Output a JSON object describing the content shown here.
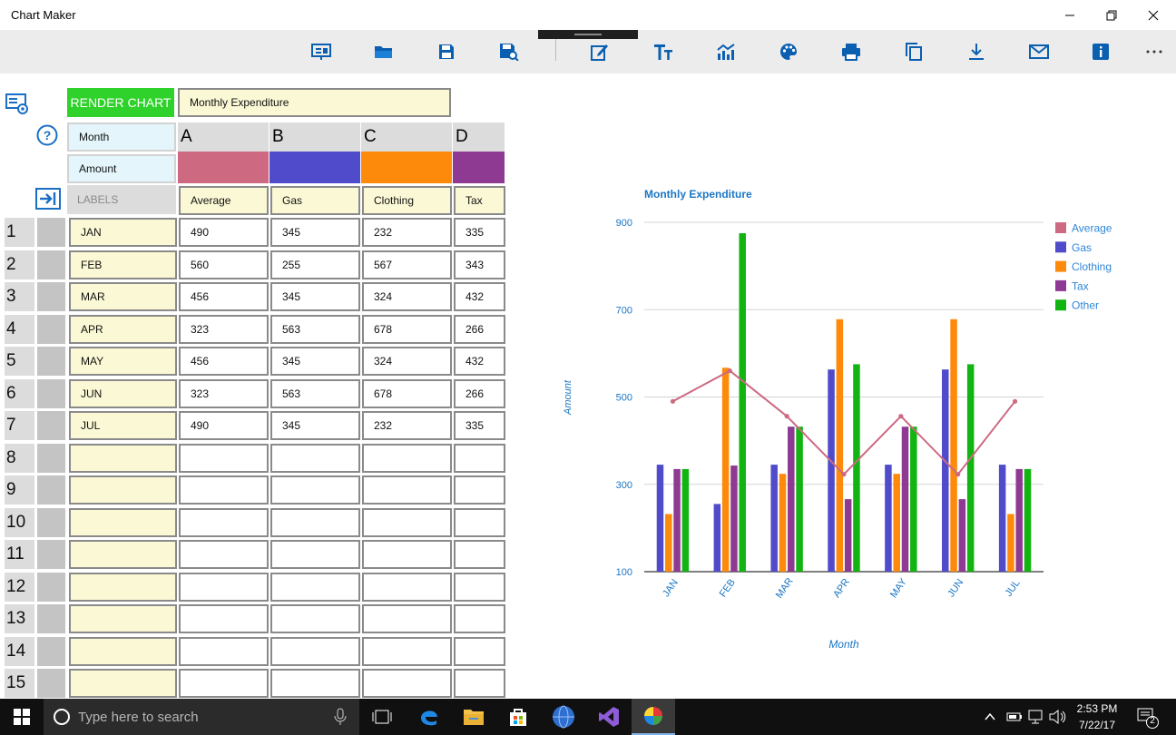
{
  "window": {
    "title": "Chart Maker"
  },
  "toolbar": {
    "icons": [
      "presentation-icon",
      "folder-open-icon",
      "save-icon",
      "save-as-icon",
      "edit-icon",
      "text-format-icon",
      "chart-type-icon",
      "palette-icon",
      "print-icon",
      "copy-icon",
      "download-icon",
      "mail-icon",
      "info-icon",
      "more-icon"
    ]
  },
  "sheet": {
    "render_button": "RENDER CHART",
    "chart_title_value": "Monthly Expenditure",
    "x_label": "Month",
    "y_label": "Amount",
    "labels_header": "LABELS",
    "columns": [
      {
        "letter": "A",
        "name": "Average",
        "color": "#cd6a82"
      },
      {
        "letter": "B",
        "name": "Gas",
        "color": "#4f4bcb"
      },
      {
        "letter": "C",
        "name": "Clothing",
        "color": "#fd8a0a"
      },
      {
        "letter": "D",
        "name": "Tax",
        "color": "#8e3a92"
      }
    ],
    "row_numbers": [
      "1",
      "2",
      "3",
      "4",
      "5",
      "6",
      "7",
      "8",
      "9",
      "10",
      "11",
      "12",
      "13",
      "14",
      "15"
    ],
    "rows": [
      {
        "label": "JAN",
        "values": [
          "490",
          "345",
          "232",
          "335"
        ]
      },
      {
        "label": "FEB",
        "values": [
          "560",
          "255",
          "567",
          "343"
        ]
      },
      {
        "label": "MAR",
        "values": [
          "456",
          "345",
          "324",
          "432"
        ]
      },
      {
        "label": "APR",
        "values": [
          "323",
          "563",
          "678",
          "266"
        ]
      },
      {
        "label": "MAY",
        "values": [
          "456",
          "345",
          "324",
          "432"
        ]
      },
      {
        "label": "JUN",
        "values": [
          "323",
          "563",
          "678",
          "266"
        ]
      },
      {
        "label": "JUL",
        "values": [
          "490",
          "345",
          "232",
          "335"
        ]
      },
      {
        "label": "",
        "values": [
          "",
          "",
          "",
          ""
        ]
      },
      {
        "label": "",
        "values": [
          "",
          "",
          "",
          ""
        ]
      },
      {
        "label": "",
        "values": [
          "",
          "",
          "",
          ""
        ]
      },
      {
        "label": "",
        "values": [
          "",
          "",
          "",
          ""
        ]
      },
      {
        "label": "",
        "values": [
          "",
          "",
          "",
          ""
        ]
      },
      {
        "label": "",
        "values": [
          "",
          "",
          "",
          ""
        ]
      },
      {
        "label": "",
        "values": [
          "",
          "",
          "",
          ""
        ]
      },
      {
        "label": "",
        "values": [
          "",
          "",
          "",
          ""
        ]
      }
    ]
  },
  "chart_data": {
    "type": "bar",
    "title": "Monthly Expenditure",
    "xlabel": "Month",
    "ylabel": "Amount",
    "ylim": [
      100,
      900
    ],
    "yticks": [
      100,
      300,
      500,
      700,
      900
    ],
    "categories": [
      "JAN",
      "FEB",
      "MAR",
      "APR",
      "MAY",
      "JUN",
      "JUL"
    ],
    "legend_position": "top-right",
    "grid": true,
    "series": [
      {
        "name": "Average",
        "render": "line",
        "color": "#cd6a82",
        "values": [
          490,
          560,
          456,
          323,
          456,
          323,
          490
        ]
      },
      {
        "name": "Gas",
        "render": "bar",
        "color": "#4f4bcb",
        "values": [
          345,
          255,
          345,
          563,
          345,
          563,
          345
        ]
      },
      {
        "name": "Clothing",
        "render": "bar",
        "color": "#fd8a0a",
        "values": [
          232,
          567,
          324,
          678,
          324,
          678,
          232
        ]
      },
      {
        "name": "Tax",
        "render": "bar",
        "color": "#8e3a92",
        "values": [
          335,
          343,
          432,
          266,
          432,
          266,
          335
        ]
      },
      {
        "name": "Other",
        "render": "bar",
        "color": "#11b411",
        "values": [
          335,
          875,
          432,
          575,
          432,
          575,
          335
        ]
      }
    ]
  },
  "taskbar": {
    "search_placeholder": "Type here to search",
    "time": "2:53 PM",
    "date": "7/22/17",
    "notification_count": "2"
  }
}
